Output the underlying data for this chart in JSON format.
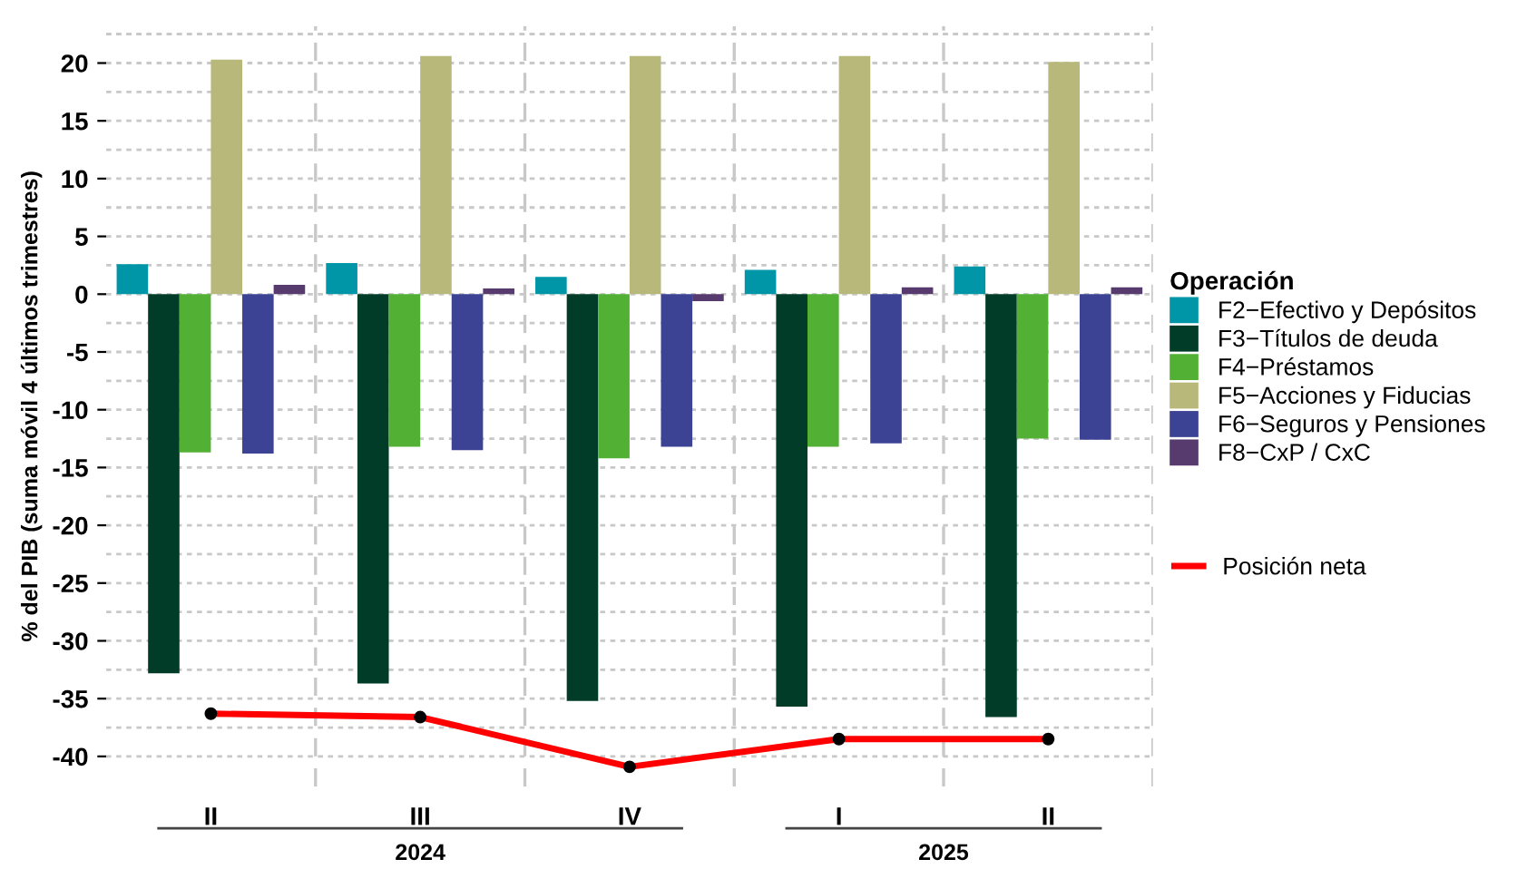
{
  "chart_data": {
    "type": "bar",
    "ylabel": "% del PIB (suma móvil 4 últimos trimestres)",
    "legend_title": "Operación",
    "categories": [
      "II",
      "III",
      "IV",
      "I",
      "II"
    ],
    "series": [
      {
        "name": "F2−Efectivo y Depósitos",
        "color": "#0096a8",
        "values": [
          2.6,
          2.7,
          1.5,
          2.1,
          2.4
        ]
      },
      {
        "name": "F3−Títulos de deuda",
        "color": "#003c28",
        "values": [
          -32.8,
          -33.7,
          -35.2,
          -35.7,
          -36.6
        ]
      },
      {
        "name": "F4−Préstamos",
        "color": "#52b034",
        "values": [
          -13.7,
          -13.2,
          -14.2,
          -13.2,
          -12.5
        ]
      },
      {
        "name": "F5−Acciones y Fiducias",
        "color": "#b8b87a",
        "values": [
          20.3,
          20.6,
          20.6,
          20.6,
          20.1
        ]
      },
      {
        "name": "F6−Seguros y Pensiones",
        "color": "#3c4294",
        "values": [
          -13.8,
          -13.5,
          -13.2,
          -12.9,
          -12.6
        ]
      },
      {
        "name": "F8−CxP / CxC",
        "color": "#573a6e",
        "values": [
          0.8,
          0.5,
          -0.6,
          0.6,
          0.6
        ]
      },
      {
        "name": "Posición neta",
        "type": "line",
        "color": "#ff0000",
        "marker": "circle",
        "values": [
          -36.3,
          -36.6,
          -40.9,
          -38.5,
          -38.5
        ]
      }
    ],
    "annotations": [
      "2024",
      "2025"
    ],
    "ylim": [
      -42.6,
      23.2
    ],
    "yticks": [
      -40,
      -35,
      -30,
      -25,
      -20,
      -15,
      -10,
      -5,
      0,
      5,
      10,
      15,
      20
    ],
    "grid": true,
    "legend": "right"
  }
}
